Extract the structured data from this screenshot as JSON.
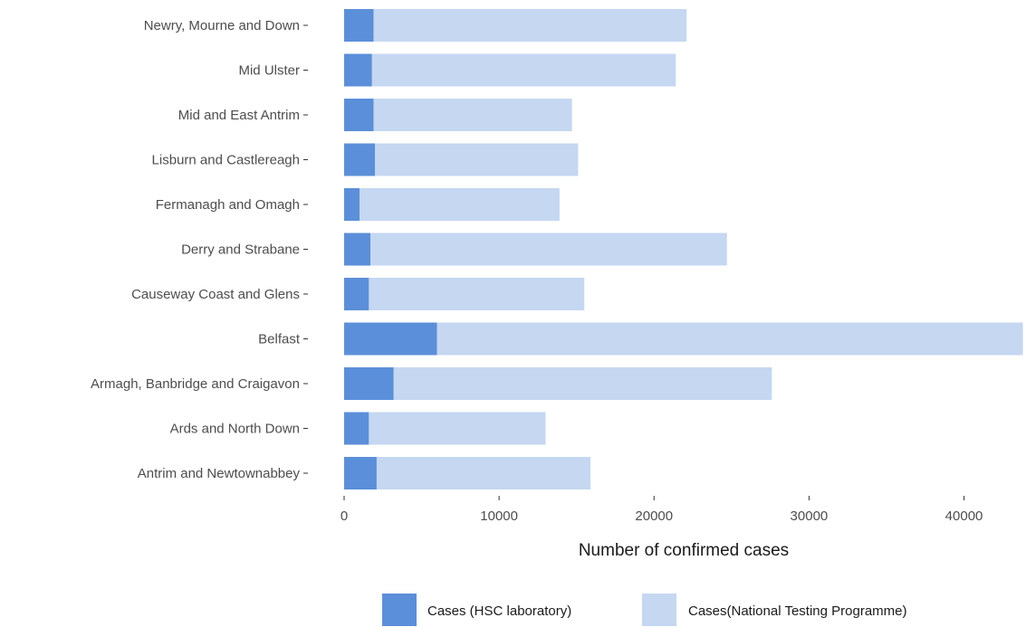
{
  "chart_data": {
    "type": "bar",
    "orientation": "horizontal",
    "stacked": true,
    "categories": [
      "Newry, Mourne and Down",
      "Mid Ulster",
      "Mid and East Antrim",
      "Lisburn and Castlereagh",
      "Fermanagh and Omagh",
      "Derry and Strabane",
      "Causeway Coast and Glens",
      "Belfast",
      "Armagh, Banbridge and Craigavon",
      "Ards and North Down",
      "Antrim and Newtownabbey"
    ],
    "series": [
      {
        "name": "Cases (HSC laboratory)",
        "color": "#5b8fd9",
        "values": [
          1900,
          1800,
          1900,
          2000,
          1000,
          1700,
          1600,
          6000,
          3200,
          1600,
          2100
        ]
      },
      {
        "name": "Cases(National Testing Programme)",
        "color": "#c5d7f1",
        "values": [
          20200,
          19600,
          12800,
          13100,
          12900,
          23000,
          13900,
          37800,
          24400,
          11400,
          13800
        ]
      }
    ],
    "xlabel": "Number of confirmed cases",
    "ylabel": "",
    "xlim": [
      0,
      44000
    ],
    "xticks": [
      0,
      10000,
      20000,
      30000,
      40000
    ],
    "grid": false,
    "legend_position": "bottom"
  }
}
